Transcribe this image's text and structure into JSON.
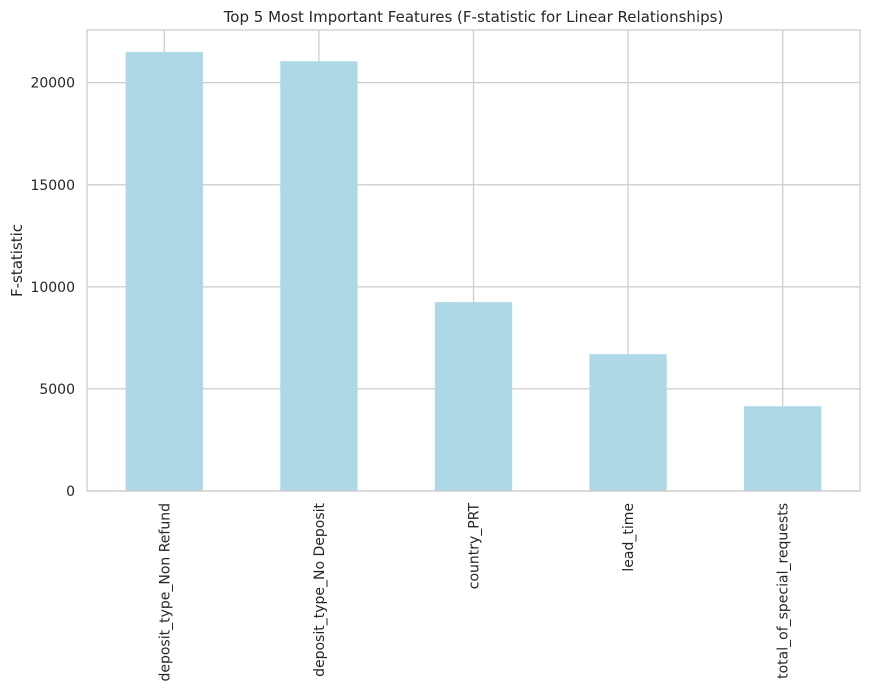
{
  "chart_data": {
    "type": "bar",
    "title": "Top 5 Most Important Features (F-statistic for Linear Relationships)",
    "xlabel": "",
    "ylabel": "F-statistic",
    "categories": [
      "deposit_type_Non Refund",
      "deposit_type_No Deposit",
      "country_PRT",
      "lead_time",
      "total_of_special_requests"
    ],
    "values": [
      21500,
      21050,
      9250,
      6700,
      4150
    ],
    "ylim": [
      0,
      22580
    ],
    "yticks": [
      0,
      5000,
      10000,
      15000,
      20000
    ],
    "ytick_labels": [
      "0",
      "5000",
      "10000",
      "15000",
      "20000"
    ],
    "grid": true,
    "colors": {
      "bar": "#add8e6",
      "grid": "#cccccc",
      "spine": "#cccccc",
      "text": "#262626",
      "background": "#ffffff"
    }
  }
}
